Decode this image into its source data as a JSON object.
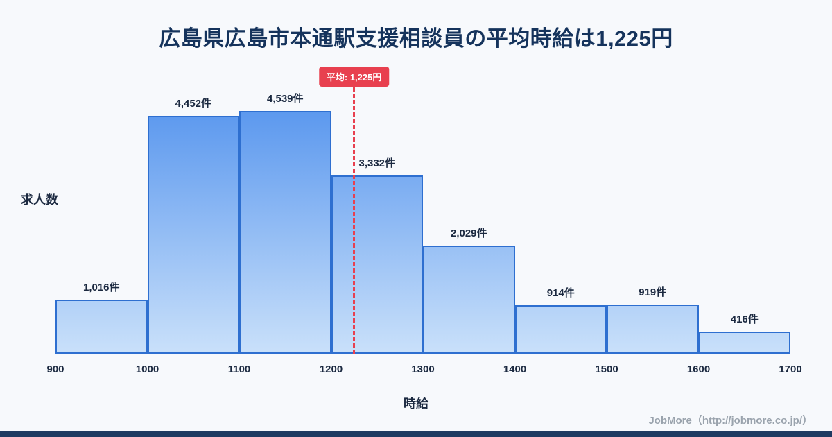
{
  "title": "広島県広島市本通駅支援相談員の平均時給は1,225円",
  "chart_data": {
    "type": "bar",
    "subtype": "histogram",
    "title": "広島県広島市本通駅支援相談員の平均時給は1,225円",
    "bin_edges": [
      900,
      1000,
      1100,
      1200,
      1300,
      1400,
      1500,
      1600,
      1700
    ],
    "x_ticks": [
      "900",
      "1000",
      "1100",
      "1200",
      "1300",
      "1400",
      "1500",
      "1600",
      "1700"
    ],
    "values": [
      1016,
      4452,
      4539,
      3332,
      2029,
      914,
      919,
      416
    ],
    "value_labels": [
      "1,016件",
      "4,452件",
      "4,539件",
      "3,332件",
      "2,029件",
      "914件",
      "919件",
      "416件"
    ],
    "xlabel": "時給",
    "ylabel": "求人数",
    "ylim": [
      0,
      4670
    ],
    "grid": false,
    "legend": "none",
    "average": 1225,
    "average_label": "平均: 1,225円"
  },
  "footer": {
    "credit": "JobMore（http://jobmore.co.jp/）"
  },
  "colors": {
    "background": "#f7f9fc",
    "title_text": "#15335c",
    "axis_text": "#1b2940",
    "bar_top": "#5896ee",
    "bar_bottom": "#c9e0fa",
    "bar_border": "#2e6fd0",
    "accent": "#e8404f",
    "badge_text": "#ffffff",
    "footer_text": "#9aa3ad",
    "strip": "#1e3a61"
  }
}
